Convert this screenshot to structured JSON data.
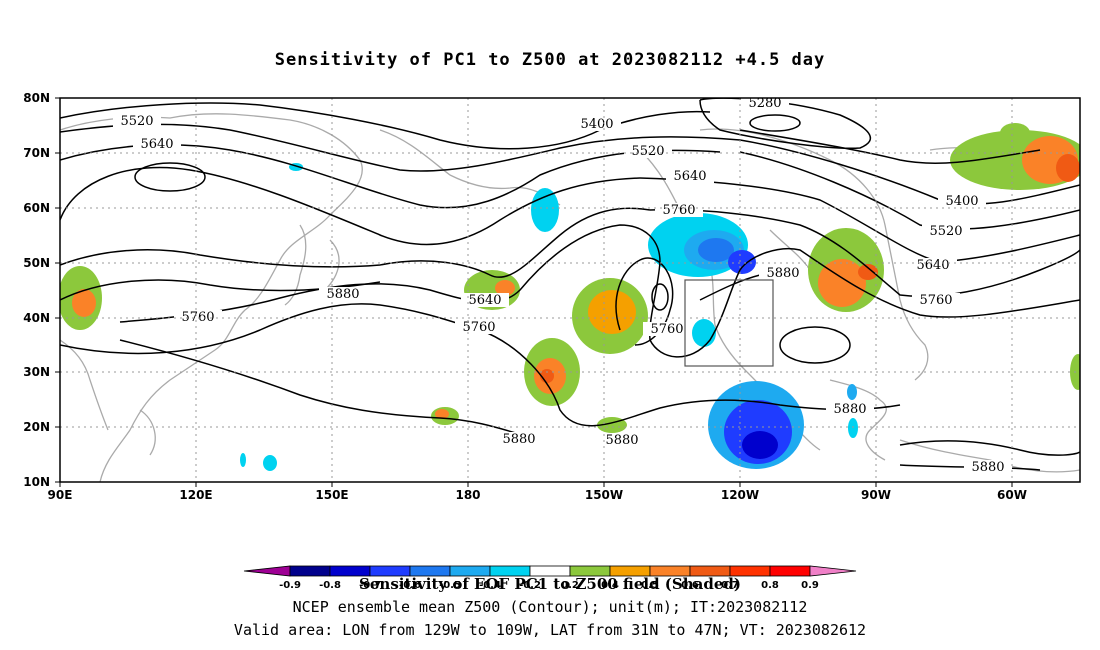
{
  "title": "Sensitivity of PC1 to Z500 at 2023082112 +4.5 day",
  "axes": {
    "lat_labels": [
      "80N",
      "70N",
      "60N",
      "50N",
      "40N",
      "30N",
      "20N",
      "10N"
    ],
    "lon_labels": [
      "90E",
      "120E",
      "150E",
      "180",
      "150W",
      "120W",
      "90W",
      "60W"
    ]
  },
  "contour_labels": [
    "5280",
    "5400",
    "5520",
    "5640",
    "5760",
    "5880",
    "5520",
    "5640",
    "5400",
    "5520",
    "5640",
    "5760",
    "5880",
    "5640",
    "5760",
    "5760",
    "5880",
    "5880",
    "5880",
    "5880",
    "5760",
    "5400",
    "5520",
    "5640",
    "5880"
  ],
  "colorbar": {
    "ticks": [
      "-0.9",
      "-0.8",
      "-0.7",
      "-0.6",
      "-0.5",
      "-0.4",
      "-0.2",
      "0.2",
      "0.4",
      "0.5",
      "0.6",
      "0.7",
      "0.8",
      "0.9"
    ],
    "colors": [
      "#9e0094",
      "#00008c",
      "#0000cd",
      "#1f3cff",
      "#1e78f0",
      "#1eaaf0",
      "#00d2f0",
      "#ffffff",
      "#8cc83c",
      "#f5a000",
      "#fa8228",
      "#f05a14",
      "#ff3200",
      "#ff0000",
      "#f080c8"
    ],
    "title": "Sensitivity of EOF PC1 to Z500 field (Shaded)"
  },
  "captions": [
    "NCEP ensemble mean Z500 (Contour); unit(m); IT:2023082112",
    "Valid area: LON from 129W to 109W, LAT from 31N to 47N; VT: 2023082612"
  ]
}
